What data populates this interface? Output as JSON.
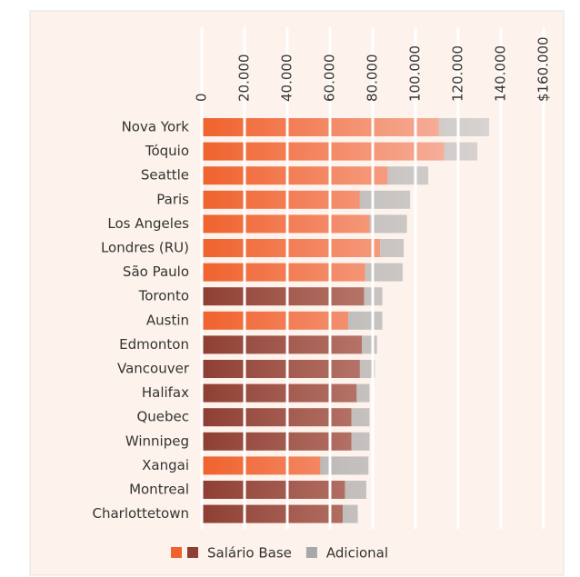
{
  "chart_data": {
    "type": "stacked_barh",
    "categories": [
      "Nova York",
      "Tóquio",
      "Seattle",
      "Paris",
      "Los Angeles",
      "Londres (RU)",
      "São Paulo",
      "Toronto",
      "Austin",
      "Edmonton",
      "Vancouver",
      "Halifax",
      "Quebec",
      "Winnipeg",
      "Xangai",
      "Montreal",
      "Charlottetown"
    ],
    "series": [
      {
        "name": "Salário Base",
        "colors": [
          "#f0622d",
          "#f0622d",
          "#f0622d",
          "#f0622d",
          "#f0622d",
          "#f0622d",
          "#f0622d",
          "#8e3f33",
          "#f0622d",
          "#8e3f33",
          "#8e3f33",
          "#8e3f33",
          "#8e3f33",
          "#8e3f33",
          "#f0622d",
          "#8e3f33",
          "#8e3f33"
        ],
        "values": [
          111000,
          113500,
          87000,
          74000,
          78500,
          83500,
          76500,
          76000,
          68500,
          75000,
          74000,
          72500,
          70000,
          70000,
          55500,
          67000,
          66000
        ]
      },
      {
        "name": "Adicional",
        "color": "#a8a8a8",
        "values": [
          23500,
          15500,
          19000,
          23500,
          17500,
          11000,
          17500,
          8500,
          16000,
          7000,
          7000,
          6000,
          8500,
          8500,
          22500,
          10000,
          7000
        ]
      }
    ],
    "xlim": [
      0,
      160000
    ],
    "xticks": [
      0,
      {
        "value": 20000,
        "label": "20.000"
      },
      {
        "value": 40000,
        "label": "40.000"
      },
      {
        "value": 60000,
        "label": "60.000"
      },
      {
        "value": 80000,
        "label": "80.000"
      },
      {
        "value": 100000,
        "label": "100.000"
      },
      {
        "value": 120000,
        "label": "120.000"
      },
      {
        "value": 140000,
        "label": "140.000"
      },
      {
        "value": 160000,
        "label": "$160.000"
      }
    ],
    "grid": true
  }
}
